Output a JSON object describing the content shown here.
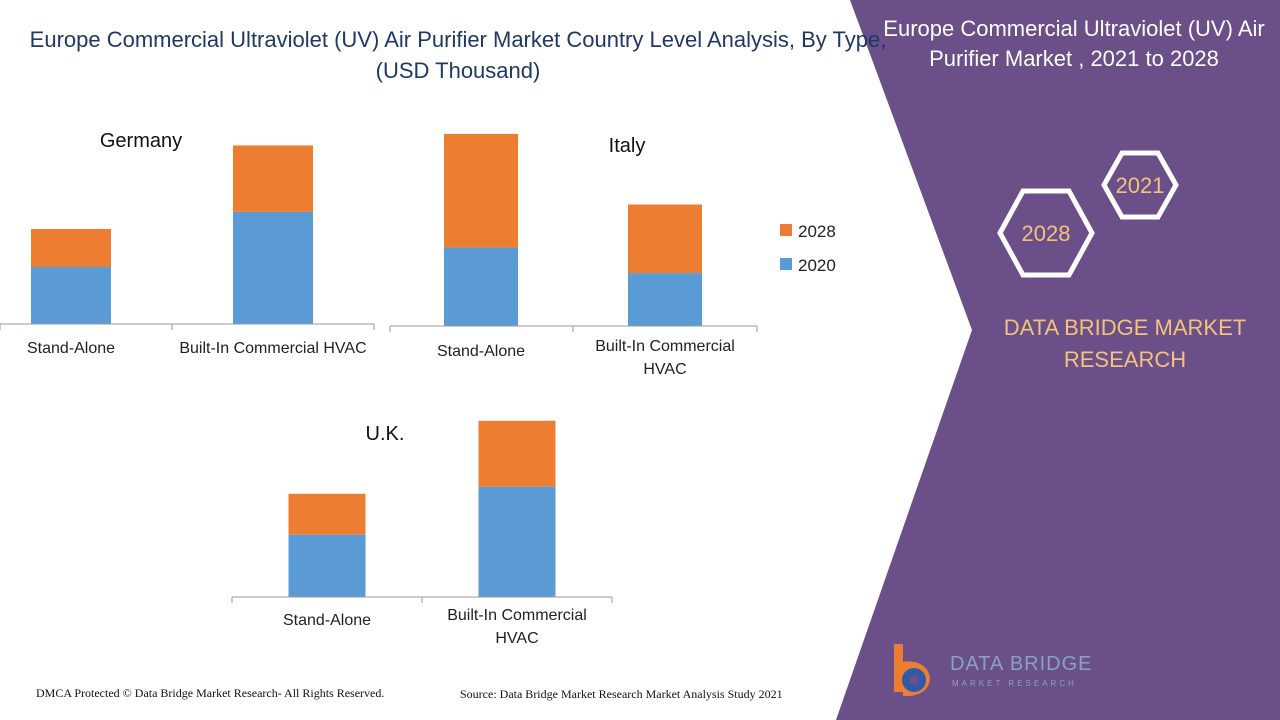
{
  "main_title": "Europe Commercial Ultraviolet (UV) Air Purifier Market Country Level Analysis, By Type, (USD Thousand)",
  "panel": {
    "title": "Europe Commercial Ultraviolet (UV) Air Purifier Market , 2021 to 2028",
    "hex_year_1": "2021",
    "hex_year_2": "2028",
    "brand": "DATA BRIDGE MARKET RESEARCH"
  },
  "logo": {
    "name": "DATA BRIDGE",
    "sub": "MARKET RESEARCH"
  },
  "footer": {
    "left": "DMCA Protected © Data Bridge Market Research- All Rights Reserved.",
    "right": "Source: Data Bridge Market Research Market Analysis Study 2021"
  },
  "colors": {
    "s2020": "#5b9bd5",
    "s2028": "#ed7d31",
    "panel": "#6a4f88",
    "accent": "#f4c27a"
  },
  "legend": [
    {
      "name": "2028",
      "color": "#ed7d31"
    },
    {
      "name": "2020",
      "color": "#5b9bd5"
    }
  ],
  "chart_data": [
    {
      "type": "bar",
      "stacked": true,
      "title": "Germany",
      "categories": [
        "Stand-Alone",
        "Built-In Commercial HVAC"
      ],
      "series": [
        {
          "name": "2020",
          "values": [
            30,
            59
          ]
        },
        {
          "name": "2028",
          "values": [
            20,
            35
          ]
        }
      ],
      "ylim": [
        0,
        100
      ]
    },
    {
      "type": "bar",
      "stacked": true,
      "title": "Italy",
      "categories": [
        "Stand-Alone",
        "Built-In Commercial HVAC"
      ],
      "series": [
        {
          "name": "2020",
          "values": [
            40,
            27
          ]
        },
        {
          "name": "2028",
          "values": [
            58,
            35
          ]
        }
      ],
      "ylim": [
        0,
        100
      ]
    },
    {
      "type": "bar",
      "stacked": true,
      "title": "U.K.",
      "categories": [
        "Stand-Alone",
        "Built-In Commercial HVAC"
      ],
      "series": [
        {
          "name": "2020",
          "values": [
            35,
            62
          ]
        },
        {
          "name": "2028",
          "values": [
            23,
            37
          ]
        }
      ],
      "ylim": [
        0,
        100
      ]
    }
  ]
}
